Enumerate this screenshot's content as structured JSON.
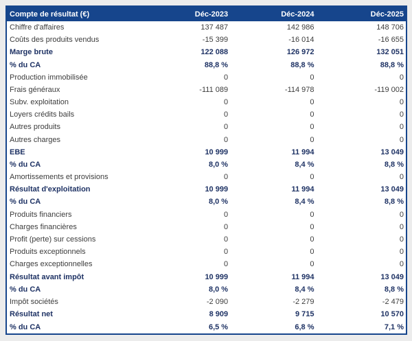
{
  "colors": {
    "header_bg": "#16458C",
    "border": "#16458C",
    "highlight_text": "#1E3264",
    "body_text": "#3C3C3C",
    "table_bg": "#FFFFFF",
    "page_bg": "#ECECEC"
  },
  "table": {
    "header": [
      "Compte de résultat (€)",
      "Déc-2023",
      "Déc-2024",
      "Déc-2025"
    ],
    "rows": [
      {
        "label": "Chiffre d'affaires",
        "values": [
          "137 487",
          "142 986",
          "148 706"
        ],
        "bold": false
      },
      {
        "label": "Coûts des produits vendus",
        "values": [
          "-15 399",
          "-16 014",
          "-16 655"
        ],
        "bold": false
      },
      {
        "label": "Marge brute",
        "values": [
          "122 088",
          "126 972",
          "132 051"
        ],
        "bold": true
      },
      {
        "label": "% du CA",
        "values": [
          "88,8 %",
          "88,8 %",
          "88,8 %"
        ],
        "bold": true
      },
      {
        "label": "Production immobilisée",
        "values": [
          "0",
          "0",
          "0"
        ],
        "bold": false
      },
      {
        "label": "Frais généraux",
        "values": [
          "-111 089",
          "-114 978",
          "-119 002"
        ],
        "bold": false
      },
      {
        "label": "Subv. exploitation",
        "values": [
          "0",
          "0",
          "0"
        ],
        "bold": false
      },
      {
        "label": "Loyers crédits bails",
        "values": [
          "0",
          "0",
          "0"
        ],
        "bold": false
      },
      {
        "label": "Autres produits",
        "values": [
          "0",
          "0",
          "0"
        ],
        "bold": false
      },
      {
        "label": "Autres charges",
        "values": [
          "0",
          "0",
          "0"
        ],
        "bold": false
      },
      {
        "label": "EBE",
        "values": [
          "10 999",
          "11 994",
          "13 049"
        ],
        "bold": true
      },
      {
        "label": "% du CA",
        "values": [
          "8,0 %",
          "8,4 %",
          "8,8 %"
        ],
        "bold": true
      },
      {
        "label": "Amortissements et provisions",
        "values": [
          "0",
          "0",
          "0"
        ],
        "bold": false
      },
      {
        "label": "Résultat d'exploitation",
        "values": [
          "10 999",
          "11 994",
          "13 049"
        ],
        "bold": true
      },
      {
        "label": "% du CA",
        "values": [
          "8,0 %",
          "8,4 %",
          "8,8 %"
        ],
        "bold": true
      },
      {
        "label": "Produits financiers",
        "values": [
          "0",
          "0",
          "0"
        ],
        "bold": false
      },
      {
        "label": "Charges financières",
        "values": [
          "0",
          "0",
          "0"
        ],
        "bold": false
      },
      {
        "label": "Profit (perte) sur cessions",
        "values": [
          "0",
          "0",
          "0"
        ],
        "bold": false
      },
      {
        "label": "Produits exceptionnels",
        "values": [
          "0",
          "0",
          "0"
        ],
        "bold": false
      },
      {
        "label": "Charges exceptionnelles",
        "values": [
          "0",
          "0",
          "0"
        ],
        "bold": false
      },
      {
        "label": "Résultat avant impôt",
        "values": [
          "10 999",
          "11 994",
          "13 049"
        ],
        "bold": true
      },
      {
        "label": "% du CA",
        "values": [
          "8,0 %",
          "8,4 %",
          "8,8 %"
        ],
        "bold": true
      },
      {
        "label": "Impôt sociétés",
        "values": [
          "-2 090",
          "-2 279",
          "-2 479"
        ],
        "bold": false
      },
      {
        "label": "Résultat net",
        "values": [
          "8 909",
          "9 715",
          "10 570"
        ],
        "bold": true
      },
      {
        "label": "% du CA",
        "values": [
          "6,5 %",
          "6,8 %",
          "7,1 %"
        ],
        "bold": true
      }
    ]
  }
}
